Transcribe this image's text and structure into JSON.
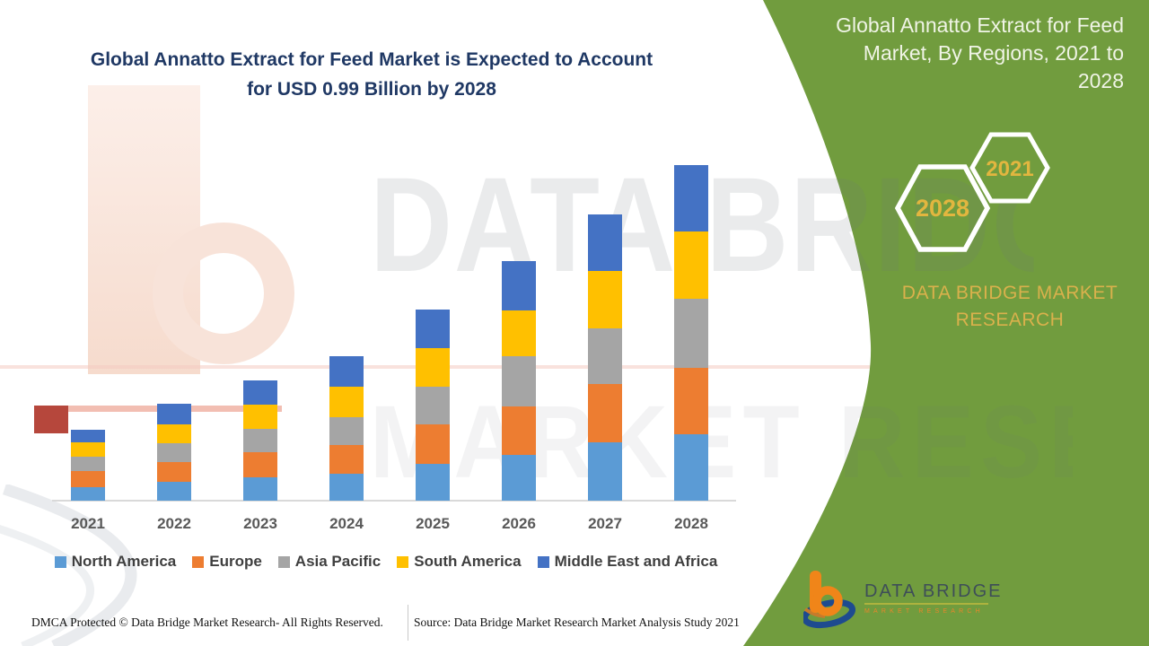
{
  "colors": {
    "panel_green": "#719C3E",
    "title_navy": "#1F3864",
    "panel_title_white": "#F0F4E6",
    "brand_gold": "#D9B14C",
    "year_gold": "#E2B63F",
    "axis_label_gray": "#595959",
    "legend_text_gray": "#3F3F3F"
  },
  "main_title": {
    "lines": [
      "Global Annatto Extract for Feed Market is Expected to Account",
      "for USD 0.99 Billion by 2028"
    ]
  },
  "chart_data": {
    "type": "bar",
    "stacked": true,
    "title": "Global Annatto Extract for Feed Market is Expected to Account for USD 0.99 Billion by 2028",
    "xlabel": "",
    "ylabel": "",
    "unit": "USD Billion (estimated; 2028 total labeled as 0.99)",
    "ylim": [
      0,
      1.0
    ],
    "grid": false,
    "legend_position": "bottom",
    "categories": [
      "2021",
      "2022",
      "2023",
      "2024",
      "2025",
      "2026",
      "2027",
      "2028"
    ],
    "series": [
      {
        "name": "North America",
        "color": "#5B9BD5",
        "values": [
          0.041,
          0.055,
          0.069,
          0.08,
          0.109,
          0.135,
          0.171,
          0.196
        ]
      },
      {
        "name": "Europe",
        "color": "#ED7D31",
        "values": [
          0.047,
          0.06,
          0.073,
          0.083,
          0.116,
          0.143,
          0.173,
          0.196
        ]
      },
      {
        "name": "Asia Pacific",
        "color": "#A5A5A5",
        "values": [
          0.042,
          0.055,
          0.069,
          0.082,
          0.111,
          0.148,
          0.165,
          0.203
        ]
      },
      {
        "name": "South America",
        "color": "#FFC000",
        "values": [
          0.042,
          0.056,
          0.073,
          0.091,
          0.114,
          0.136,
          0.17,
          0.199
        ]
      },
      {
        "name": "Middle East and Africa",
        "color": "#4472C4",
        "values": [
          0.037,
          0.059,
          0.07,
          0.09,
          0.113,
          0.146,
          0.165,
          0.196
        ]
      }
    ],
    "totals": [
      0.209,
      0.285,
      0.354,
      0.426,
      0.563,
      0.708,
      0.844,
      0.99
    ]
  },
  "side_panel": {
    "title_lines": [
      "Global Annatto Extract for Feed",
      "Market, By Regions, 2021 to",
      "2028"
    ],
    "hexagon_big_year": "2028",
    "hexagon_small_year": "2021",
    "brand_lines": [
      "DATA BRIDGE MARKET",
      "RESEARCH"
    ]
  },
  "footer": {
    "dmca": "DMCA Protected © Data Bridge Market Research- All Rights Reserved.",
    "source": "Source: Data Bridge Market Research Market Analysis Study 2021"
  },
  "logo": {
    "brand": "DATA BRIDGE",
    "tagline": "MARKET RESEARCH"
  },
  "watermark": {
    "line1": "DATA BRIDGE",
    "line2": "MARKET RESEARCH"
  }
}
